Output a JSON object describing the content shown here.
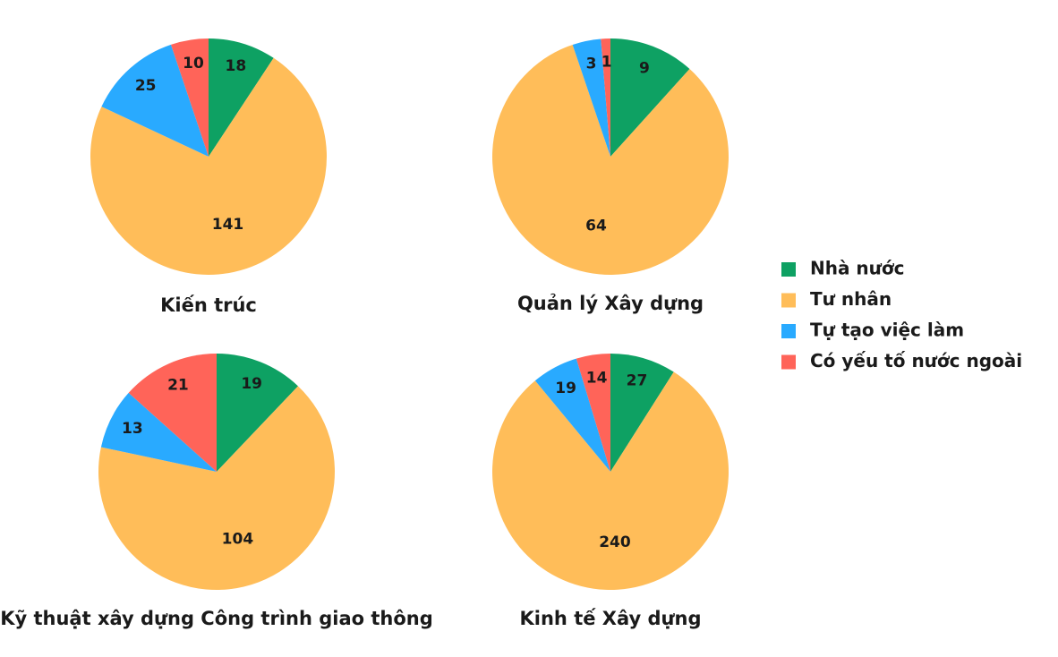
{
  "legend": {
    "labels": [
      "Nhà nước",
      "Tư nhân",
      "Tự tạo việc làm",
      "Có yếu tố nước ngoài"
    ],
    "colors": [
      "#0ea163",
      "#ffbd59",
      "#29aaff",
      "#ff6459"
    ]
  },
  "chart_data": [
    {
      "type": "pie",
      "title": "Kiến trúc",
      "values": [
        18,
        141,
        25,
        10
      ]
    },
    {
      "type": "pie",
      "title": "Quản lý Xây dựng",
      "values": [
        9,
        64,
        3,
        1
      ]
    },
    {
      "type": "pie",
      "title": "Kỹ thuật xây dựng Công trình giao thông",
      "values": [
        19,
        104,
        13,
        21
      ]
    },
    {
      "type": "pie",
      "title": "Kinh tế Xây dựng",
      "values": [
        27,
        240,
        19,
        14
      ]
    }
  ]
}
